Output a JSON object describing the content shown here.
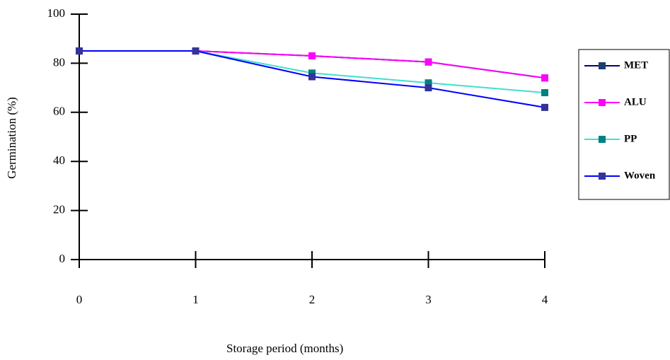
{
  "chart_data": {
    "type": "line",
    "x_label": "Storage period (months)",
    "y_label": "Germination (%)",
    "x": [
      0,
      1,
      2,
      3,
      4
    ],
    "xlim": [
      0,
      4
    ],
    "xticks": [
      0,
      1,
      2,
      3,
      4
    ],
    "ylim": [
      0,
      100
    ],
    "yticks": [
      0,
      20,
      40,
      60,
      80,
      100
    ],
    "series": [
      {
        "name": "MET",
        "color": "#000080",
        "marker_color": "#1f3d6e",
        "values": [
          85,
          85,
          83,
          80.5,
          74
        ]
      },
      {
        "name": "ALU",
        "color": "#ff00ff",
        "marker_color": "#ff00ff",
        "values": [
          85,
          85,
          83,
          80.5,
          74
        ]
      },
      {
        "name": "PP",
        "color": "#40e0d0",
        "marker_color": "#008080",
        "values": [
          85,
          85,
          76,
          72,
          68
        ]
      },
      {
        "name": "Woven",
        "color": "#0000ff",
        "marker_color": "#333399",
        "values": [
          85,
          85,
          74.5,
          70,
          62
        ]
      }
    ]
  }
}
